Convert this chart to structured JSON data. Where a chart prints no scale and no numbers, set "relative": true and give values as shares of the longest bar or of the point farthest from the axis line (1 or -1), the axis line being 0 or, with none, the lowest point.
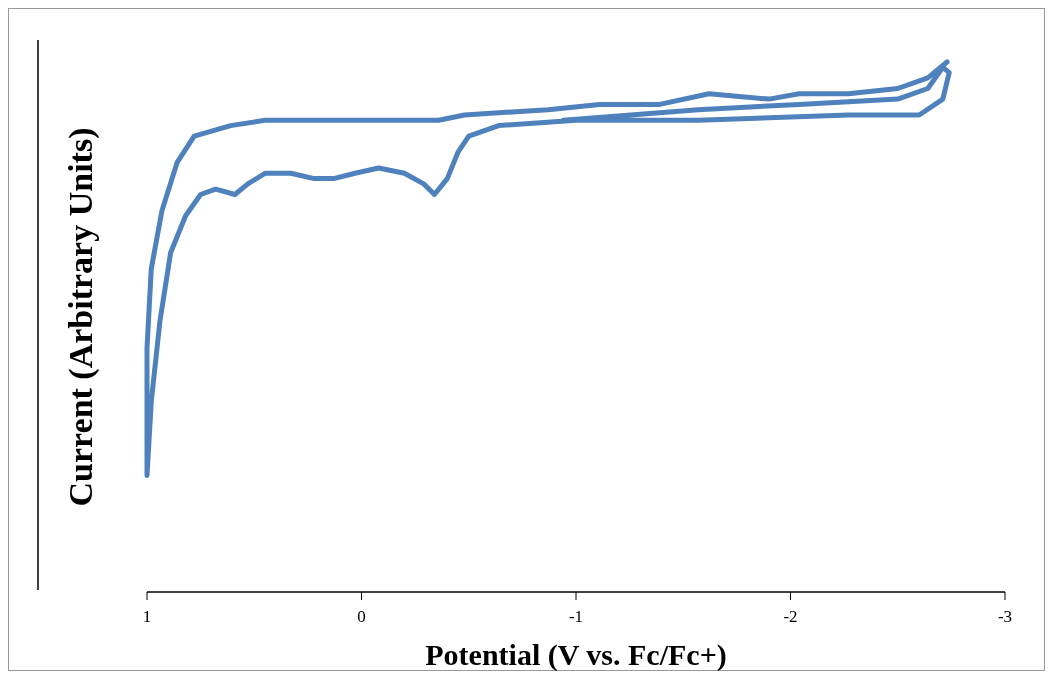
{
  "chart_data": {
    "type": "line",
    "xlabel": "Potential (V vs. Fc/Fc+)",
    "ylabel": "Current (Arbitrary Units)",
    "relative": true,
    "xlim": [
      1,
      -3
    ],
    "xticks": [
      1,
      0,
      -1,
      -2,
      -3
    ],
    "series": [
      {
        "color": "#4f81bd",
        "x": [
          -0.94,
          -1.57,
          -2.04,
          -2.5,
          -2.64,
          -2.71,
          -2.74,
          -2.71,
          -2.6,
          -2.27,
          -1.57,
          -1.0,
          -0.64,
          -0.5,
          -0.45,
          -0.4,
          -0.34,
          -0.29,
          -0.2,
          -0.08,
          0.03,
          0.13,
          0.22,
          0.33,
          0.45,
          0.53,
          0.59,
          0.68,
          0.75,
          0.82,
          0.89,
          0.94,
          0.98,
          1.0,
          1.0,
          0.98,
          0.93,
          0.86,
          0.78,
          0.61,
          0.45,
          0.2,
          -0.18,
          -0.36,
          -0.48,
          -0.87,
          -1.11,
          -1.39,
          -1.62,
          -1.9,
          -2.04,
          -2.27,
          -2.5,
          -2.64,
          -2.73
        ],
        "values": [
          0.89,
          0.91,
          0.92,
          0.93,
          0.95,
          0.99,
          0.98,
          0.93,
          0.9,
          0.9,
          0.89,
          0.89,
          0.88,
          0.86,
          0.83,
          0.78,
          0.75,
          0.77,
          0.79,
          0.8,
          0.79,
          0.78,
          0.78,
          0.79,
          0.79,
          0.77,
          0.75,
          0.76,
          0.75,
          0.71,
          0.64,
          0.51,
          0.36,
          0.22,
          0.46,
          0.61,
          0.72,
          0.81,
          0.86,
          0.88,
          0.89,
          0.89,
          0.89,
          0.89,
          0.9,
          0.91,
          0.92,
          0.92,
          0.94,
          0.93,
          0.94,
          0.94,
          0.95,
          0.97,
          1.0
        ]
      }
    ]
  }
}
